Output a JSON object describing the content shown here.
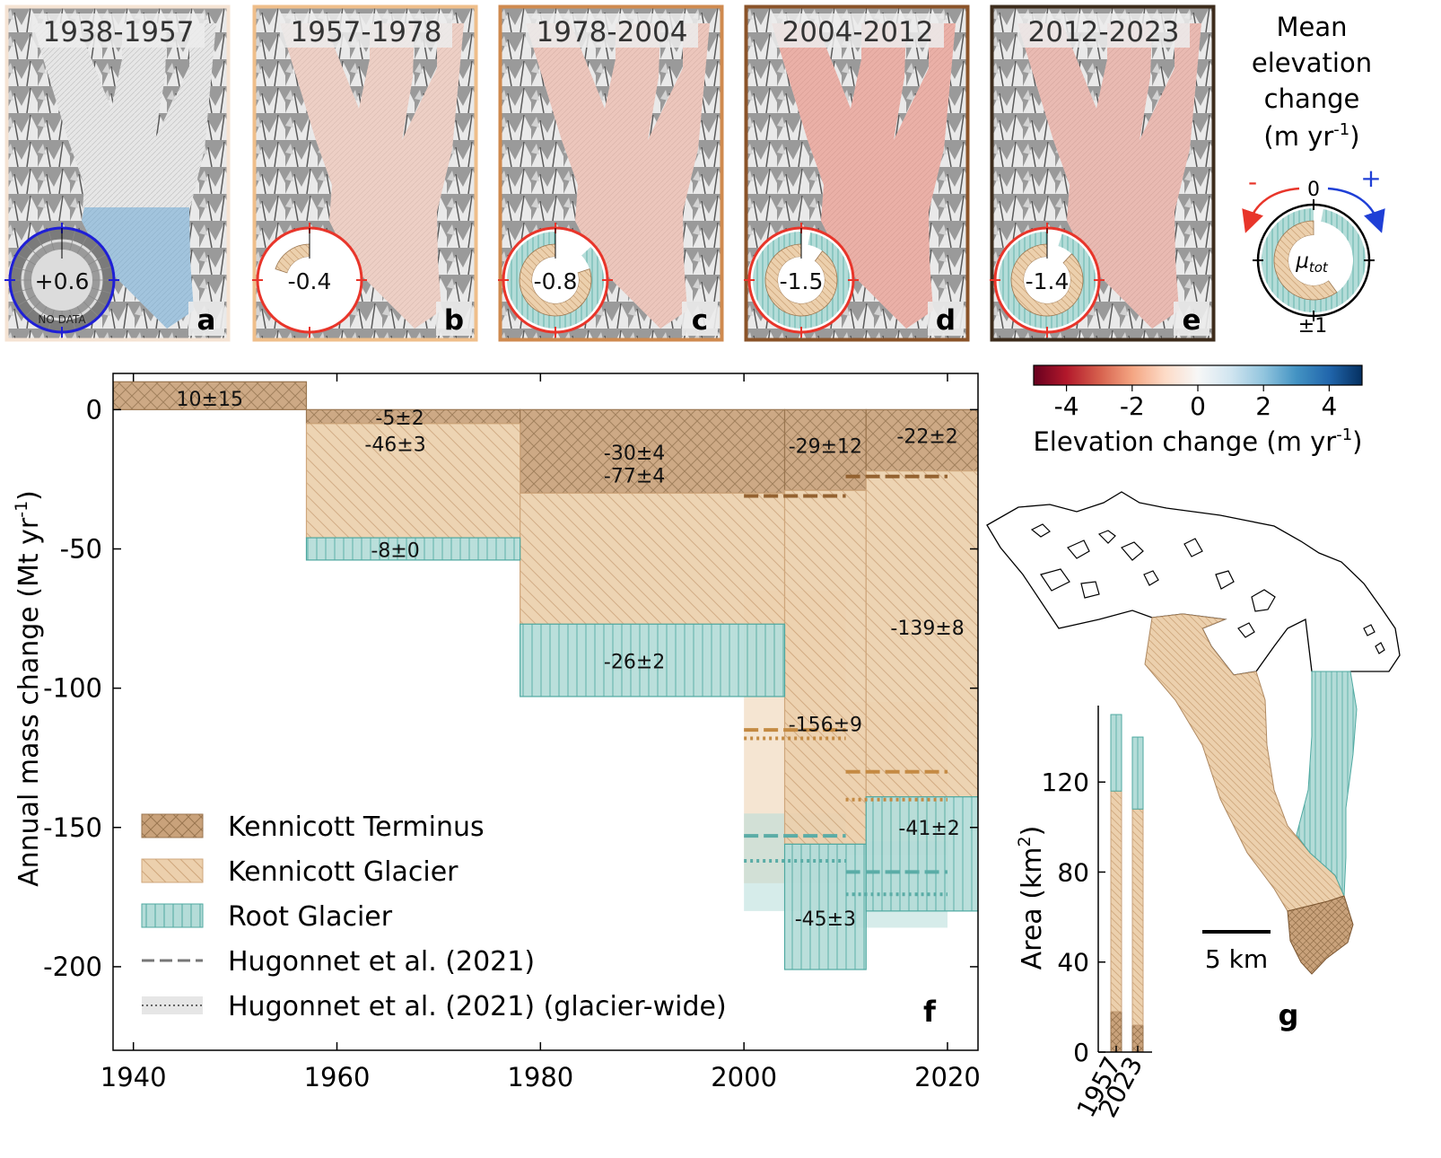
{
  "panels": [
    {
      "period": "1938-1957",
      "letter": "a",
      "value": "+0.6",
      "tag": "NO DATA",
      "border": "#f5e3d3",
      "ring": "#1f1fd6",
      "tint": "#6aa8d6",
      "tint_opacity": 0.55,
      "zone": "lower",
      "inner": "gray",
      "arc_tan": 0,
      "arc_teal": 0
    },
    {
      "period": "1957-1978",
      "letter": "b",
      "value": "-0.4",
      "tag": "",
      "border": "#efbe8a",
      "ring": "#e8352a",
      "tint": "#f3b8a4",
      "tint_opacity": 0.5,
      "zone": "all",
      "inner": "light",
      "arc_tan": 0.2,
      "arc_teal": 0
    },
    {
      "period": "1978-2004",
      "letter": "c",
      "value": "-0.8",
      "tag": "",
      "border": "#cf8a4f",
      "ring": "#e8352a",
      "tint": "#f2a592",
      "tint_opacity": 0.5,
      "zone": "all",
      "inner": "light",
      "arc_tan": 0.8,
      "arc_teal": 0.87
    },
    {
      "period": "2004-2012",
      "letter": "d",
      "value": "-1.5",
      "tag": "",
      "border": "#8a5329",
      "ring": "#e8352a",
      "tint": "#ec8473",
      "tint_opacity": 0.55,
      "zone": "all",
      "inner": "light",
      "arc_tan": 0.9,
      "arc_teal": 0.97
    },
    {
      "period": "2012-2023",
      "letter": "e",
      "value": "-1.4",
      "tag": "",
      "border": "#3d2c1c",
      "ring": "#e8352a",
      "tint": "#ec8e7d",
      "tint_opacity": 0.5,
      "zone": "all",
      "inner": "light",
      "arc_tan": 0.88,
      "arc_teal": 0.95
    }
  ],
  "key": {
    "title_lines": [
      "Mean",
      "elevation",
      "change"
    ],
    "units_prefix": "(m yr",
    "units_sup": "-1",
    "units_suffix": ")",
    "minus": "-",
    "plus": "+",
    "zero": "0",
    "bottom": "±1",
    "center": "μ",
    "center_sub": "tot"
  },
  "colorbar": {
    "ticks": [
      "-4",
      "-2",
      "0",
      "2",
      "4"
    ],
    "tick_values": [
      -4,
      -2,
      0,
      2,
      4
    ],
    "range": [
      -5,
      5
    ],
    "label_prefix": "Elevation change (m yr",
    "label_sup": "-1",
    "label_suffix": ")",
    "colors": [
      "#67001f",
      "#b2182b",
      "#d6604d",
      "#f4a582",
      "#fddbc7",
      "#f7f7f7",
      "#d1e5f0",
      "#92c5de",
      "#4393c3",
      "#2166ac",
      "#053061"
    ]
  },
  "colors": {
    "terminus": "#c9a27b",
    "kennicott": "#ecd0ad",
    "root": "#b4dcd8",
    "terminus_hatch": "#9a7650",
    "kennicott_hatch": "#cfa77c",
    "root_hatch": "#4fa9a1",
    "hug_terminus": "#946230",
    "hug_kennicott": "#c48a43",
    "hug_root": "#5aaca6"
  },
  "chart_data": [
    {
      "type": "bar",
      "panel_letter": "f",
      "ylabel_prefix": "Annual mass change (Mt yr",
      "ylabel_sup": "-1",
      "ylabel_suffix": ")",
      "xlim": [
        1938,
        2023
      ],
      "ylim": [
        -230,
        13
      ],
      "xticks": [
        1940,
        1960,
        1980,
        2000,
        2020
      ],
      "yticks": [
        0,
        -50,
        -100,
        -150,
        -200
      ],
      "legend": [
        {
          "label": "Kennicott Terminus",
          "kind": "terminus"
        },
        {
          "label": "Kennicott Glacier",
          "kind": "kennicott"
        },
        {
          "label": "Root Glacier",
          "kind": "root"
        },
        {
          "label": "Hugonnet et al. (2021)",
          "kind": "dash"
        },
        {
          "label": "Hugonnet et al. (2021) (glacier-wide)",
          "kind": "dot"
        }
      ],
      "series": [
        {
          "name": "Kennicott Terminus",
          "bars": [
            {
              "x0": 1938,
              "x1": 1957,
              "y0": 0,
              "y1": 10,
              "label": "10±15"
            },
            {
              "x0": 1957,
              "x1": 1978,
              "y0": 0,
              "y1": -5,
              "label": "-5±2"
            },
            {
              "x0": 1978,
              "x1": 2004,
              "y0": 0,
              "y1": -30,
              "label": "-30±4"
            },
            {
              "x0": 2004,
              "x1": 2012,
              "y0": 0,
              "y1": -29,
              "label": "-29±12"
            },
            {
              "x0": 2012,
              "x1": 2023,
              "y0": 0,
              "y1": -22,
              "label": "-22±2"
            }
          ]
        },
        {
          "name": "Kennicott Glacier",
          "bars": [
            {
              "x0": 1957,
              "x1": 1978,
              "y0": -5,
              "y1": -46,
              "label": "-46±3"
            },
            {
              "x0": 1978,
              "x1": 2004,
              "y0": -30,
              "y1": -77,
              "label": "-77±4"
            },
            {
              "x0": 2004,
              "x1": 2012,
              "y0": -29,
              "y1": -156,
              "label": "-156±9"
            },
            {
              "x0": 2012,
              "x1": 2023,
              "y0": -22,
              "y1": -139,
              "label": "-139±8"
            }
          ]
        },
        {
          "name": "Root Glacier",
          "bars": [
            {
              "x0": 1957,
              "x1": 1978,
              "y0": -46,
              "y1": -54,
              "label": "-8±0"
            },
            {
              "x0": 1978,
              "x1": 2004,
              "y0": -77,
              "y1": -103,
              "label": "-26±2"
            },
            {
              "x0": 2004,
              "x1": 2012,
              "y0": -156,
              "y1": -201,
              "label": "-45±3"
            },
            {
              "x0": 2012,
              "x1": 2023,
              "y0": -139,
              "y1": -180,
              "label": "-41±2"
            }
          ]
        }
      ],
      "hugonnet": [
        {
          "kind": "terminus",
          "x0": 2000,
          "x1": 2010,
          "y": -31,
          "style": "dash"
        },
        {
          "kind": "terminus",
          "x0": 2010,
          "x1": 2020,
          "y": -24,
          "style": "dash"
        },
        {
          "kind": "kennicott",
          "x0": 2000,
          "x1": 2010,
          "y": -115,
          "style": "dash"
        },
        {
          "kind": "kennicott",
          "x0": 2000,
          "x1": 2010,
          "y": -118,
          "style": "dot"
        },
        {
          "kind": "kennicott",
          "x0": 2010,
          "x1": 2020,
          "y": -130,
          "style": "dash"
        },
        {
          "kind": "kennicott",
          "x0": 2010,
          "x1": 2020,
          "y": -140,
          "style": "dot"
        },
        {
          "kind": "root",
          "x0": 2000,
          "x1": 2010,
          "y": -153,
          "style": "dash"
        },
        {
          "kind": "root",
          "x0": 2000,
          "x1": 2010,
          "y": -162,
          "style": "dot"
        },
        {
          "kind": "root",
          "x0": 2010,
          "x1": 2020,
          "y": -166,
          "style": "dash"
        },
        {
          "kind": "root",
          "x0": 2010,
          "x1": 2020,
          "y": -174,
          "style": "dot"
        }
      ],
      "uncertainty": [
        {
          "kind": "kennicott",
          "x0": 2000,
          "x1": 2010,
          "y0": -65,
          "y1": -170
        },
        {
          "kind": "kennicott",
          "x0": 2010,
          "x1": 2020,
          "y0": -105,
          "y1": -160
        },
        {
          "kind": "root",
          "x0": 2000,
          "x1": 2010,
          "y0": -145,
          "y1": -180
        },
        {
          "kind": "root",
          "x0": 2010,
          "x1": 2020,
          "y0": -155,
          "y1": -186
        }
      ]
    },
    {
      "type": "bar",
      "panel_letter": "",
      "ylabel_prefix": "Area (km",
      "ylabel_sup": "2",
      "ylabel_suffix": ")",
      "categories": [
        "1957",
        "2023"
      ],
      "ylim": [
        0,
        150
      ],
      "yticks": [
        0,
        40,
        80,
        120
      ],
      "series": [
        {
          "name": "Kennicott Terminus",
          "values": [
            18,
            12
          ]
        },
        {
          "name": "Kennicott Glacier",
          "values": [
            98,
            96
          ]
        },
        {
          "name": "Root Glacier",
          "values": [
            34,
            32
          ]
        }
      ]
    }
  ],
  "map": {
    "letter": "g",
    "scale_label": "5 km"
  }
}
